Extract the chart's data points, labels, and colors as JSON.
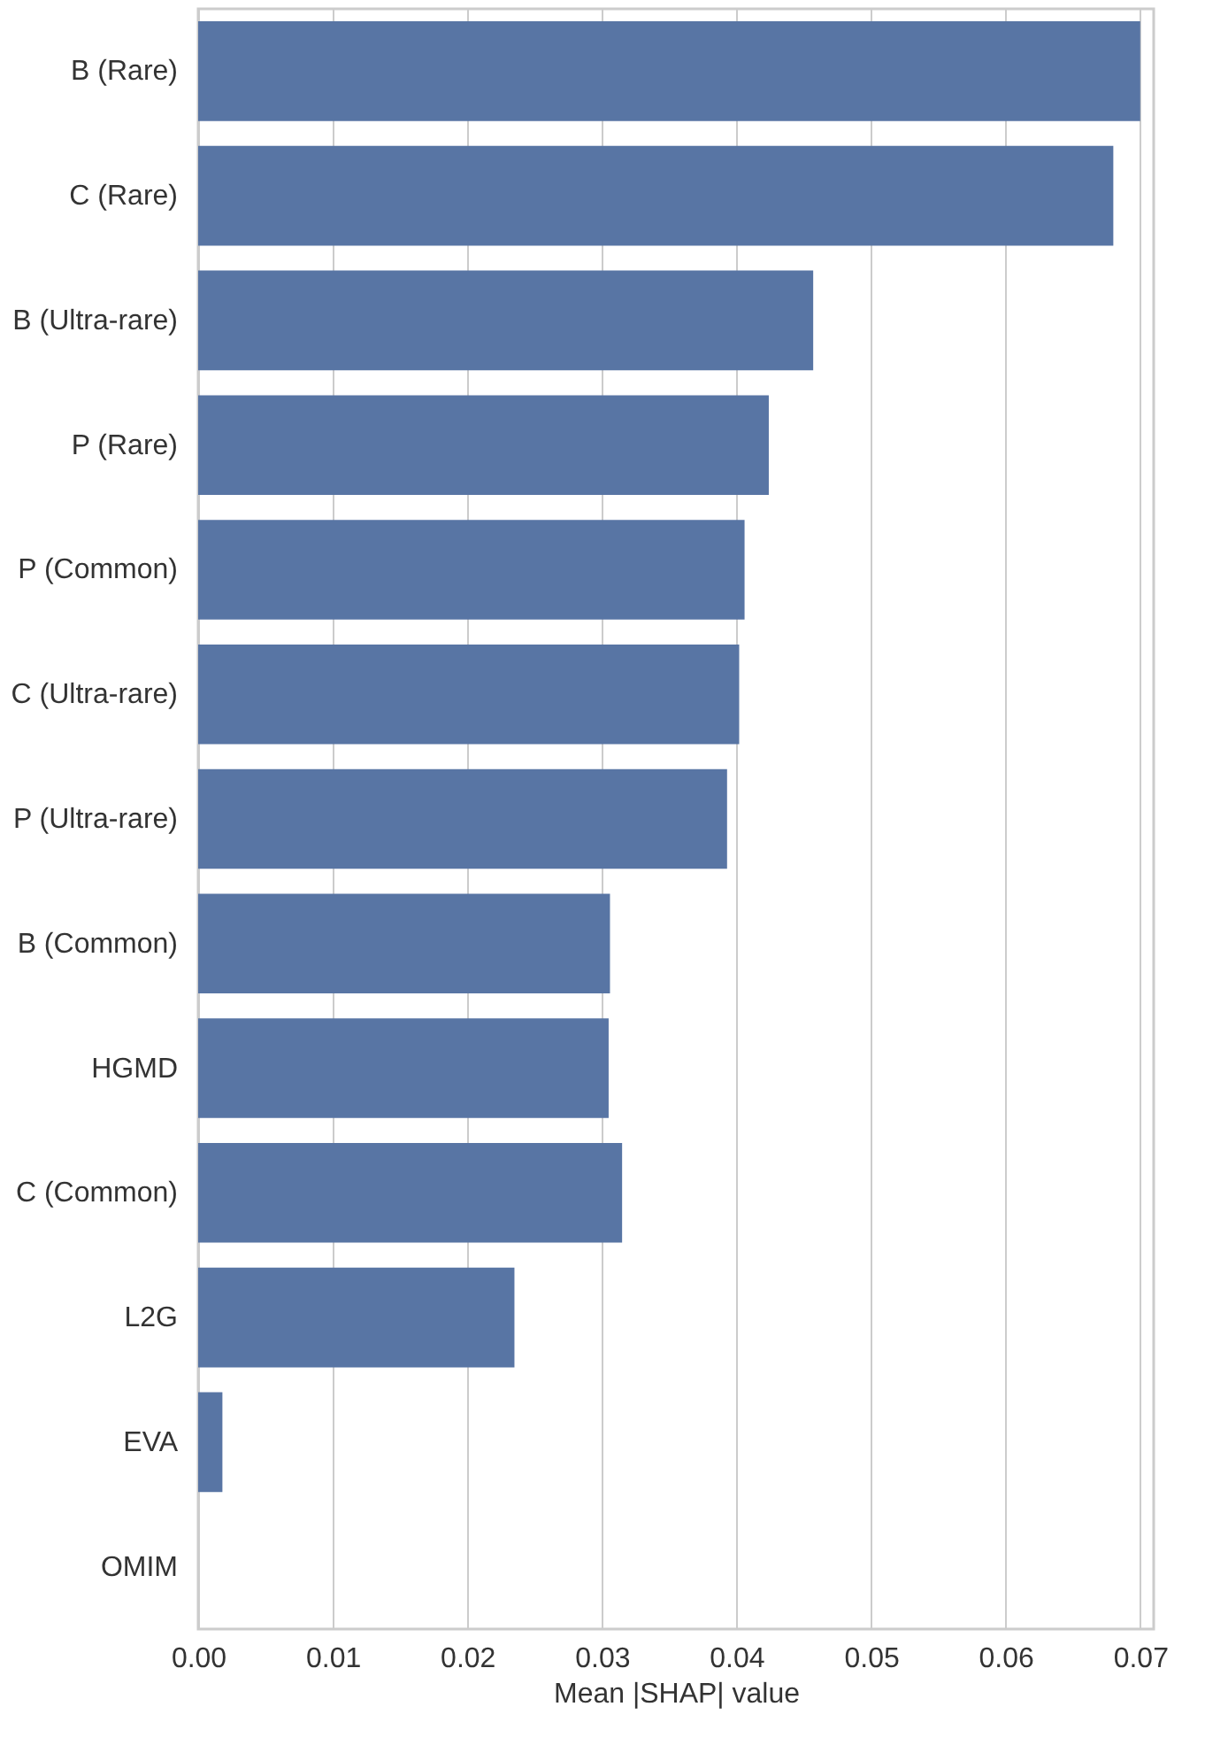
{
  "chart_data": {
    "type": "bar",
    "orientation": "horizontal",
    "xlabel": "Mean |SHAP| value",
    "categories": [
      "B (Rare)",
      "C (Rare)",
      "B (Ultra-rare)",
      "P (Rare)",
      "P (Common)",
      "C (Ultra-rare)",
      "P (Ultra-rare)",
      "B (Common)",
      "HGMD",
      "C (Common)",
      "L2G",
      "EVA",
      "OMIM"
    ],
    "values": [
      0.07,
      0.068,
      0.0457,
      0.0424,
      0.0406,
      0.0402,
      0.0393,
      0.0306,
      0.0305,
      0.0315,
      0.0235,
      0.0018,
      0.0
    ],
    "color": "#5875a4",
    "xlim": [
      0,
      0.071
    ],
    "xticks": [
      {
        "value": 0,
        "label": "0.00"
      },
      {
        "value": 0.01,
        "label": "0.01"
      },
      {
        "value": 0.02,
        "label": "0.02"
      },
      {
        "value": 0.03,
        "label": "0.03"
      },
      {
        "value": 0.04,
        "label": "0.04"
      },
      {
        "value": 0.05,
        "label": "0.05"
      },
      {
        "value": 0.06,
        "label": "0.06"
      },
      {
        "value": 0.07,
        "label": "0.07"
      }
    ],
    "grid": "x"
  }
}
